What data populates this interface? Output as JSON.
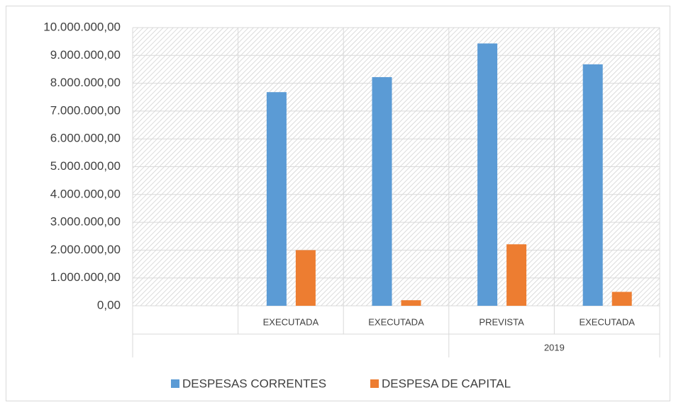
{
  "chart_data": {
    "type": "bar",
    "categories": [
      null,
      "EXECUTADA",
      "EXECUTADA",
      "PREVISTA",
      "EXECUTADA"
    ],
    "group_labels": [
      null,
      null,
      null,
      "2019",
      "2019"
    ],
    "series": [
      {
        "name": "DESPESAS CORRENTES",
        "color": "#5b9bd5",
        "values": [
          null,
          7680000,
          8220000,
          9430000,
          8680000
        ]
      },
      {
        "name": "DESPESA DE CAPITAL",
        "color": "#ed7d31",
        "values": [
          null,
          2000000,
          200000,
          2210000,
          500000
        ]
      }
    ],
    "ylim": [
      0,
      10000000
    ],
    "yticks": [
      {
        "value": 0,
        "label": "0,00"
      },
      {
        "value": 1000000,
        "label": "1.000.000,00"
      },
      {
        "value": 2000000,
        "label": "2.000.000,00"
      },
      {
        "value": 3000000,
        "label": "3.000.000,00"
      },
      {
        "value": 4000000,
        "label": "4.000.000,00"
      },
      {
        "value": 5000000,
        "label": "5.000.000,00"
      },
      {
        "value": 6000000,
        "label": "6.000.000,00"
      },
      {
        "value": 7000000,
        "label": "7.000.000,00"
      },
      {
        "value": 8000000,
        "label": "8.000.000,00"
      },
      {
        "value": 9000000,
        "label": "9.000.000,00"
      },
      {
        "value": 10000000,
        "label": "10.000.000,00"
      }
    ],
    "grid": true,
    "legend": "bottom"
  }
}
